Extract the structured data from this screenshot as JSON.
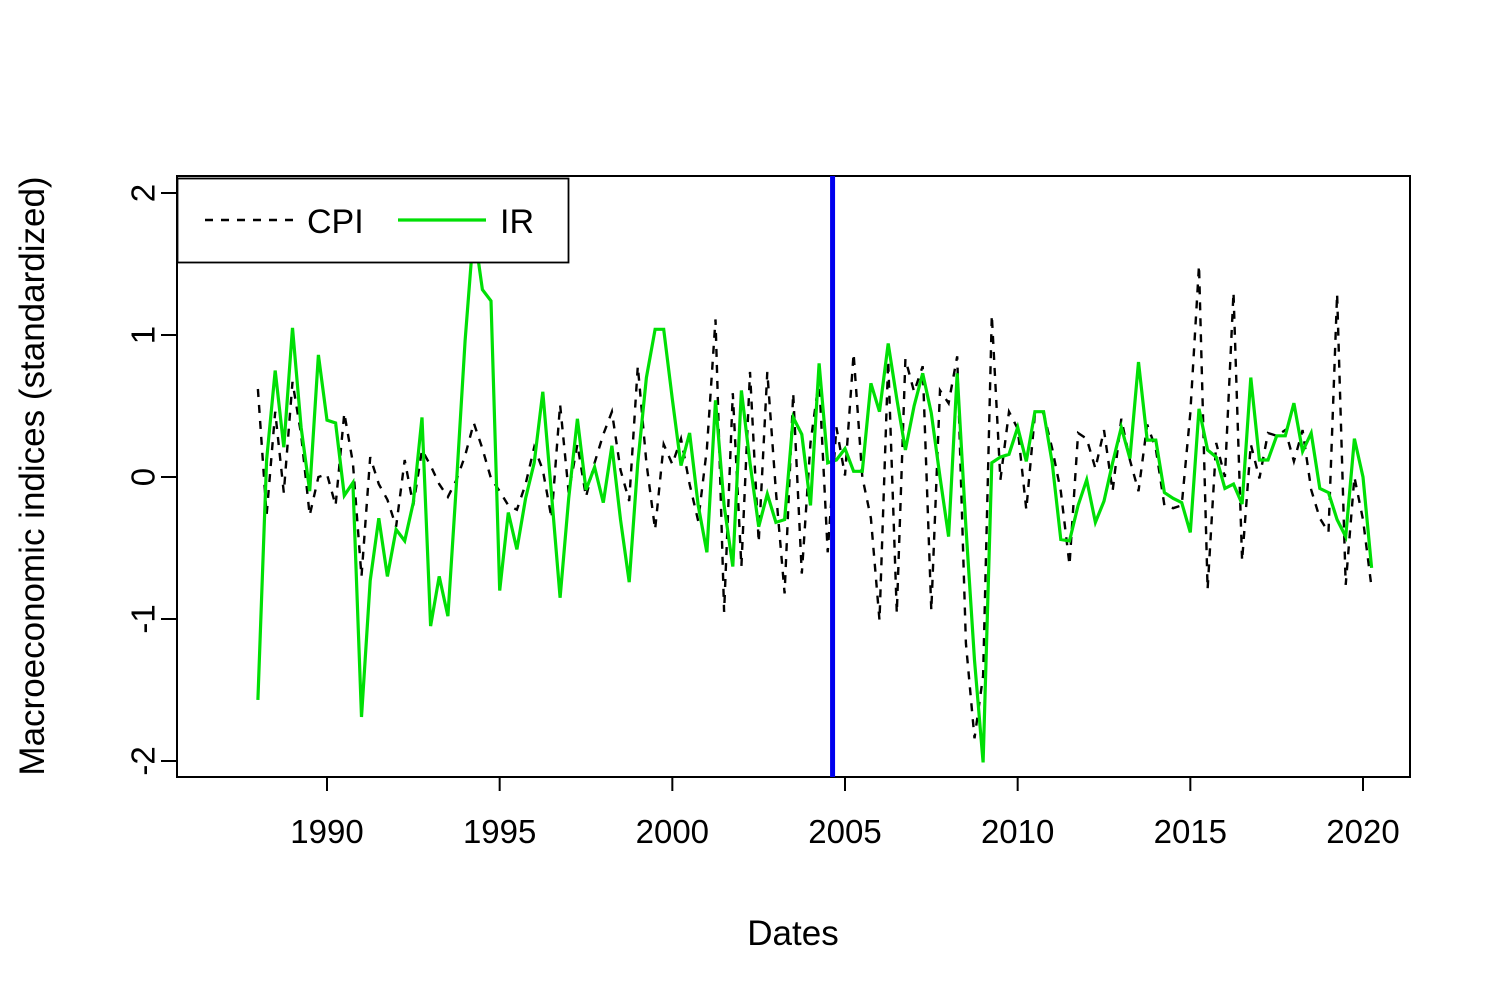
{
  "chart_data": {
    "type": "line",
    "title": "",
    "xlabel": "Dates",
    "ylabel": "Macroeconomic indices (standardized)",
    "legend_position": "top-left",
    "grid": false,
    "xlim": [
      1987.5,
      2021.3
    ],
    "ylim": [
      -2.12,
      2.12
    ],
    "x_ticks": [
      1990,
      1995,
      2000,
      2005,
      2010,
      2015,
      2020
    ],
    "y_ticks": [
      -2,
      -1,
      0,
      1,
      2
    ],
    "x_start": 1988.0,
    "x_step": 0.25,
    "vline": {
      "x": 2004.64,
      "color": "#0000EE"
    },
    "series": [
      {
        "name": "CPI",
        "color": "#000000",
        "line_style": "dashed",
        "values": [
          0.62,
          -0.27,
          0.46,
          -0.11,
          0.67,
          0.3,
          -0.27,
          0.0,
          0.02,
          -0.2,
          0.45,
          0.1,
          -0.7,
          0.14,
          -0.05,
          -0.16,
          -0.35,
          0.12,
          -0.2,
          0.19,
          0.08,
          -0.05,
          -0.14,
          -0.02,
          0.15,
          0.38,
          0.2,
          -0.01,
          -0.1,
          -0.2,
          -0.23,
          -0.05,
          0.21,
          0.05,
          -0.29,
          0.51,
          -0.11,
          0.23,
          -0.14,
          0.1,
          0.3,
          0.46,
          0.05,
          -0.17,
          0.78,
          0.1,
          -0.37,
          0.23,
          0.09,
          0.27,
          -0.05,
          -0.31,
          0.2,
          1.11,
          -0.95,
          0.59,
          -0.63,
          0.74,
          -0.46,
          0.74,
          -0.1,
          -0.82,
          0.59,
          -0.68,
          0.24,
          0.69,
          -0.53,
          0.35,
          0.01,
          0.87,
          0.0,
          -0.29,
          -1.01,
          0.82,
          -0.96,
          0.83,
          0.6,
          0.78,
          -0.94,
          0.61,
          0.52,
          0.85,
          -1.17,
          -1.84,
          -1.4,
          1.14,
          -0.02,
          0.46,
          0.34,
          -0.23,
          0.44,
          0.45,
          0.2,
          -0.1,
          -0.62,
          0.31,
          0.27,
          0.06,
          0.33,
          -0.1,
          0.41,
          0.12,
          -0.1,
          0.37,
          0.2,
          -0.2,
          -0.22,
          -0.2,
          0.45,
          1.49,
          -0.79,
          0.24,
          0.0,
          1.3,
          -0.59,
          0.23,
          -0.01,
          0.31,
          0.29,
          0.33,
          0.11,
          0.33,
          -0.09,
          -0.29,
          -0.39,
          1.29,
          -0.76,
          0.0,
          -0.3,
          -0.78
        ]
      },
      {
        "name": "IR",
        "color": "#00DF05",
        "line_style": "solid",
        "values": [
          -1.57,
          0.12,
          0.75,
          0.21,
          1.05,
          0.35,
          -0.1,
          0.86,
          0.4,
          0.38,
          -0.13,
          -0.04,
          -1.69,
          -0.73,
          -0.29,
          -0.7,
          -0.37,
          -0.45,
          -0.18,
          0.42,
          -1.05,
          -0.7,
          -0.98,
          -0.04,
          0.96,
          1.75,
          1.32,
          1.24,
          -0.8,
          -0.25,
          -0.51,
          -0.15,
          0.1,
          0.6,
          -0.12,
          -0.85,
          -0.15,
          0.41,
          -0.09,
          0.07,
          -0.18,
          0.22,
          -0.3,
          -0.74,
          0.1,
          0.7,
          1.04,
          1.04,
          0.55,
          0.08,
          0.31,
          -0.2,
          -0.53,
          0.54,
          -0.2,
          -0.63,
          0.61,
          0.1,
          -0.35,
          -0.12,
          -0.32,
          -0.3,
          0.42,
          0.3,
          -0.2,
          0.8,
          0.1,
          0.12,
          0.2,
          0.04,
          0.04,
          0.66,
          0.46,
          0.94,
          0.55,
          0.19,
          0.5,
          0.73,
          0.45,
          0.0,
          -0.42,
          0.73,
          -0.35,
          -1.29,
          -2.01,
          0.1,
          0.14,
          0.16,
          0.35,
          0.11,
          0.46,
          0.46,
          0.1,
          -0.44,
          -0.45,
          -0.2,
          -0.02,
          -0.32,
          -0.17,
          0.1,
          0.35,
          0.13,
          0.81,
          0.26,
          0.26,
          -0.11,
          -0.15,
          -0.18,
          -0.39,
          0.48,
          0.19,
          0.14,
          -0.08,
          -0.05,
          -0.19,
          0.7,
          0.12,
          0.12,
          0.29,
          0.29,
          0.52,
          0.18,
          0.31,
          -0.08,
          -0.11,
          -0.3,
          -0.42,
          0.27,
          0.0,
          -0.64
        ]
      }
    ]
  },
  "legend": {
    "items": [
      {
        "label": "CPI",
        "style": "dashed",
        "color": "#000000"
      },
      {
        "label": "IR",
        "style": "solid",
        "color": "#00DF05"
      }
    ]
  }
}
